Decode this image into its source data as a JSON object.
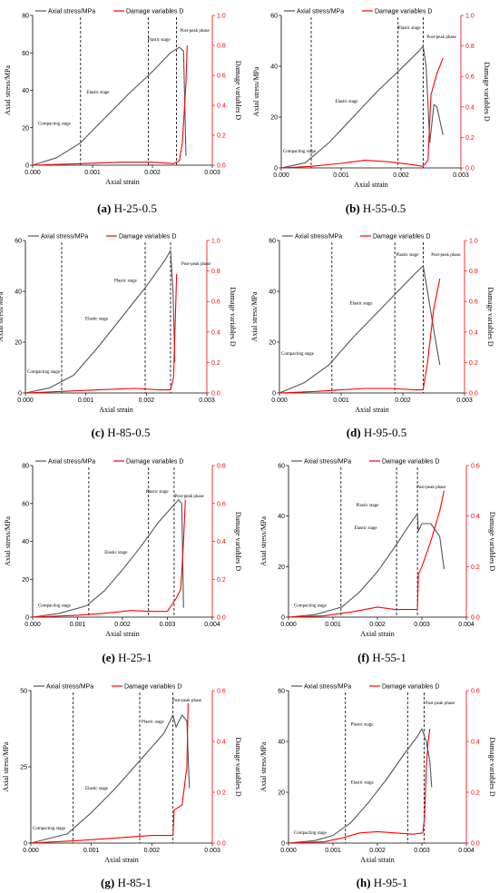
{
  "legend": {
    "stress": "Axial stress/MPa",
    "damage": "Damage variables D"
  },
  "xlabel": "Axial strain",
  "ylabel_left": "Axial stress/MPa",
  "ylabel_right": "Damage variables D",
  "colors": {
    "stress": "#555555",
    "damage": "#ff0000",
    "divider": "#000000"
  },
  "stage_names": {
    "compacting": "Compacting stage",
    "elastic": "Elastic stage",
    "plastic": "Plastic stage",
    "post": "Post-peak phase"
  },
  "chart_data": [
    {
      "type": "line",
      "caption_letter": "(a)",
      "caption_text": "H-25-0.5",
      "xlim": [
        0,
        0.003
      ],
      "xticks": [
        "0.000",
        "0.001",
        "0.002",
        "0.003"
      ],
      "ylim": [
        0,
        80
      ],
      "yticks": [
        "0",
        "20",
        "40",
        "60",
        "80"
      ],
      "y2lim": [
        0,
        1.0
      ],
      "y2ticks": [
        "0.0",
        "0.2",
        "0.4",
        "0.6",
        "0.8",
        "1.0"
      ],
      "dividers": [
        0.0008,
        0.00193,
        0.0024
      ],
      "series": [
        {
          "name": "Axial stress/MPa",
          "axis": "left",
          "x": [
            0,
            0.0004,
            0.0008,
            0.0012,
            0.0016,
            0.002,
            0.0023,
            0.00245,
            0.00252,
            0.00256
          ],
          "y": [
            0,
            4,
            12,
            25,
            38,
            50,
            60,
            63,
            61,
            5
          ]
        },
        {
          "name": "Damage variables D",
          "axis": "right",
          "x": [
            0,
            0.0008,
            0.0015,
            0.002,
            0.00235,
            0.00245,
            0.0025,
            0.00256,
            0.00258
          ],
          "y": [
            0,
            0.01,
            0.02,
            0.02,
            0.01,
            0.03,
            0.15,
            0.55,
            0.8
          ]
        }
      ]
    },
    {
      "type": "line",
      "caption_letter": "(b)",
      "caption_text": "H-55-0.5",
      "xlim": [
        0,
        0.003
      ],
      "xticks": [
        "0.000",
        "0.001",
        "0.002",
        "0.003"
      ],
      "ylim": [
        0,
        60
      ],
      "yticks": [
        "0",
        "20",
        "40",
        "60"
      ],
      "y2lim": [
        0,
        1.0
      ],
      "y2ticks": [
        "0.0",
        "0.2",
        "0.4",
        "0.6",
        "0.8",
        "1.0"
      ],
      "dividers": [
        0.0005,
        0.00195,
        0.00237
      ],
      "series": [
        {
          "name": "Axial stress/MPa",
          "axis": "left",
          "x": [
            0,
            0.0004,
            0.0008,
            0.0012,
            0.0016,
            0.002,
            0.0023,
            0.00237,
            0.00242,
            0.00248,
            0.00255,
            0.0026,
            0.0027
          ],
          "y": [
            0,
            2,
            10,
            20,
            30,
            39,
            46,
            48,
            40,
            10,
            25,
            24,
            13
          ]
        },
        {
          "name": "Damage variables D",
          "axis": "right",
          "x": [
            0,
            0.0005,
            0.001,
            0.0014,
            0.0018,
            0.0022,
            0.00237,
            0.00245,
            0.0025,
            0.0026,
            0.0027
          ],
          "y": [
            0,
            0.01,
            0.03,
            0.05,
            0.04,
            0.02,
            0.01,
            0.05,
            0.48,
            0.62,
            0.72
          ]
        }
      ]
    },
    {
      "type": "line",
      "caption_letter": "(c)",
      "caption_text": "H-85-0.5",
      "xlim": [
        0,
        0.003
      ],
      "xticks": [
        "0.000",
        "0.001",
        "0.002",
        "0.003"
      ],
      "ylim": [
        0,
        60
      ],
      "yticks": [
        "0",
        "20",
        "40",
        "60"
      ],
      "y2lim": [
        0,
        1.0
      ],
      "y2ticks": [
        "0.0",
        "0.2",
        "0.4",
        "0.6",
        "0.8",
        "1.0"
      ],
      "dividers": [
        0.0006,
        0.00198,
        0.0024
      ],
      "series": [
        {
          "name": "Axial stress/MPa",
          "axis": "left",
          "x": [
            0,
            0.0004,
            0.0008,
            0.0012,
            0.0016,
            0.002,
            0.0023,
            0.0024,
            0.00244,
            0.00247
          ],
          "y": [
            0,
            2,
            7,
            18,
            30,
            42,
            52,
            56,
            40,
            12
          ]
        },
        {
          "name": "Damage variables D",
          "axis": "right",
          "x": [
            0,
            0.0006,
            0.0012,
            0.0018,
            0.0022,
            0.0024,
            0.00245,
            0.00248,
            0.0025
          ],
          "y": [
            0,
            0.01,
            0.02,
            0.03,
            0.02,
            0.02,
            0.1,
            0.5,
            0.78
          ]
        }
      ]
    },
    {
      "type": "line",
      "caption_letter": "(d)",
      "caption_text": "H-95-0.5",
      "xlim": [
        0,
        0.003
      ],
      "xticks": [
        "0.000",
        "0.001",
        "0.002",
        "0.003"
      ],
      "ylim": [
        0,
        60
      ],
      "yticks": [
        "0",
        "20",
        "40",
        "60"
      ],
      "y2lim": [
        0,
        1.0
      ],
      "y2ticks": [
        "0.0",
        "0.2",
        "0.4",
        "0.6",
        "0.8",
        "1.0"
      ],
      "dividers": [
        0.00085,
        0.00187,
        0.00233
      ],
      "series": [
        {
          "name": "Axial stress/MPa",
          "axis": "left",
          "x": [
            0,
            0.0004,
            0.0008,
            0.0012,
            0.0016,
            0.002,
            0.0022,
            0.00233,
            0.0024,
            0.0025,
            0.0026
          ],
          "y": [
            0,
            4,
            11,
            22,
            32,
            42,
            47,
            50,
            40,
            25,
            11
          ]
        },
        {
          "name": "Damage variables D",
          "axis": "right",
          "x": [
            0,
            0.0006,
            0.001,
            0.0014,
            0.0018,
            0.0022,
            0.00233,
            0.0024,
            0.0025,
            0.0026
          ],
          "y": [
            0,
            0.01,
            0.02,
            0.03,
            0.03,
            0.02,
            0.02,
            0.2,
            0.55,
            0.75
          ]
        }
      ]
    },
    {
      "type": "line",
      "caption_letter": "(e)",
      "caption_text": "H-25-1",
      "xlim": [
        0,
        0.004
      ],
      "xticks": [
        "0.000",
        "0.001",
        "0.002",
        "0.003",
        "0.004"
      ],
      "ylim": [
        0,
        80
      ],
      "yticks": [
        "0",
        "20",
        "40",
        "60",
        "80"
      ],
      "y2lim": [
        0,
        0.8
      ],
      "y2ticks": [
        "0.0",
        "0.2",
        "0.4",
        "0.6",
        "0.8"
      ],
      "dividers": [
        0.00125,
        0.00258,
        0.00315
      ],
      "series": [
        {
          "name": "Axial stress/MPa",
          "axis": "left",
          "x": [
            0,
            0.0006,
            0.0012,
            0.0016,
            0.002,
            0.0024,
            0.0028,
            0.0031,
            0.00325,
            0.00332,
            0.00336
          ],
          "y": [
            0,
            2,
            6,
            14,
            25,
            37,
            50,
            58,
            62,
            60,
            5
          ]
        },
        {
          "name": "Damage variables D",
          "axis": "right",
          "x": [
            0,
            0.001,
            0.0016,
            0.0022,
            0.0026,
            0.003,
            0.0032,
            0.0033,
            0.00336,
            0.0034
          ],
          "y": [
            0,
            0.01,
            0.02,
            0.035,
            0.03,
            0.03,
            0.1,
            0.15,
            0.4,
            0.62
          ]
        }
      ]
    },
    {
      "type": "line",
      "caption_letter": "(f)",
      "caption_text": "H-55-1",
      "xlim": [
        0,
        0.004
      ],
      "xticks": [
        "0.000",
        "0.001",
        "0.002",
        "0.003",
        "0.004"
      ],
      "ylim": [
        0,
        60
      ],
      "yticks": [
        "0",
        "20",
        "40",
        "60"
      ],
      "y2lim": [
        0,
        0.6
      ],
      "y2ticks": [
        "0.0",
        "0.2",
        "0.4",
        "0.6"
      ],
      "dividers": [
        0.00118,
        0.00243,
        0.0029
      ],
      "series": [
        {
          "name": "Axial stress/MPa",
          "axis": "left",
          "x": [
            0,
            0.0006,
            0.0012,
            0.0016,
            0.002,
            0.0024,
            0.0027,
            0.0029,
            0.00292,
            0.003,
            0.0032,
            0.0034,
            0.0035
          ],
          "y": [
            0,
            1,
            4,
            10,
            18,
            28,
            36,
            41,
            34,
            37,
            37,
            32,
            19
          ]
        },
        {
          "name": "Damage variables D",
          "axis": "right",
          "x": [
            0,
            0.0008,
            0.0014,
            0.002,
            0.0024,
            0.0028,
            0.0029,
            0.00292,
            0.003,
            0.0032,
            0.0034,
            0.0035
          ],
          "y": [
            0,
            0.005,
            0.02,
            0.04,
            0.03,
            0.03,
            0.03,
            0.17,
            0.2,
            0.3,
            0.42,
            0.5
          ]
        }
      ]
    },
    {
      "type": "line",
      "caption_letter": "(g)",
      "caption_text": "H-85-1",
      "xlim": [
        0,
        0.003
      ],
      "xticks": [
        "0.000",
        "0.001",
        "0.002",
        "0.003"
      ],
      "ylim": [
        0,
        50
      ],
      "yticks": [
        "0",
        "25",
        "50"
      ],
      "y2lim": [
        0,
        0.6
      ],
      "y2ticks": [
        "0.0",
        "0.2",
        "0.4",
        "0.6"
      ],
      "dividers": [
        0.0007,
        0.0018,
        0.00235
      ],
      "series": [
        {
          "name": "Axial stress/MPa",
          "axis": "left",
          "x": [
            0,
            0.0002,
            0.0006,
            0.001,
            0.0014,
            0.0018,
            0.0022,
            0.00235,
            0.0024,
            0.0025,
            0.00258,
            0.00262
          ],
          "y": [
            0,
            1,
            3,
            10,
            18,
            27,
            36,
            42,
            38,
            42,
            40,
            18
          ]
        },
        {
          "name": "Damage variables D",
          "axis": "right",
          "x": [
            0,
            0.0004,
            0.0008,
            0.0014,
            0.002,
            0.00235,
            0.00237,
            0.0025,
            0.00258,
            0.0026
          ],
          "y": [
            0,
            0.005,
            0.01,
            0.02,
            0.03,
            0.03,
            0.13,
            0.15,
            0.3,
            0.55
          ]
        }
      ]
    },
    {
      "type": "line",
      "caption_letter": "(h)",
      "caption_text": "H-95-1",
      "xlim": [
        0,
        0.004
      ],
      "xticks": [
        "0.000",
        "0.001",
        "0.002",
        "0.003",
        "0.004"
      ],
      "ylim": [
        0,
        60
      ],
      "yticks": [
        "0",
        "20",
        "40",
        "60"
      ],
      "y2lim": [
        0,
        0.6
      ],
      "y2ticks": [
        "0.0",
        "0.2",
        "0.4",
        "0.6"
      ],
      "dividers": [
        0.00128,
        0.00268,
        0.00305
      ],
      "series": [
        {
          "name": "Axial stress/MPa",
          "axis": "left",
          "x": [
            0,
            0.0006,
            0.001,
            0.0014,
            0.0018,
            0.0022,
            0.0026,
            0.0029,
            0.003,
            0.0031,
            0.00318,
            0.00322
          ],
          "y": [
            0,
            1,
            3,
            8,
            16,
            25,
            35,
            42,
            45,
            40,
            32,
            22
          ]
        },
        {
          "name": "Damage variables D",
          "axis": "right",
          "x": [
            0,
            0.0008,
            0.0012,
            0.0016,
            0.002,
            0.0024,
            0.0028,
            0.00302,
            0.00306,
            0.0031,
            0.00314,
            0.00318
          ],
          "y": [
            0,
            0.005,
            0.02,
            0.04,
            0.045,
            0.04,
            0.035,
            0.04,
            0.1,
            0.3,
            0.4,
            0.45
          ]
        }
      ]
    }
  ]
}
